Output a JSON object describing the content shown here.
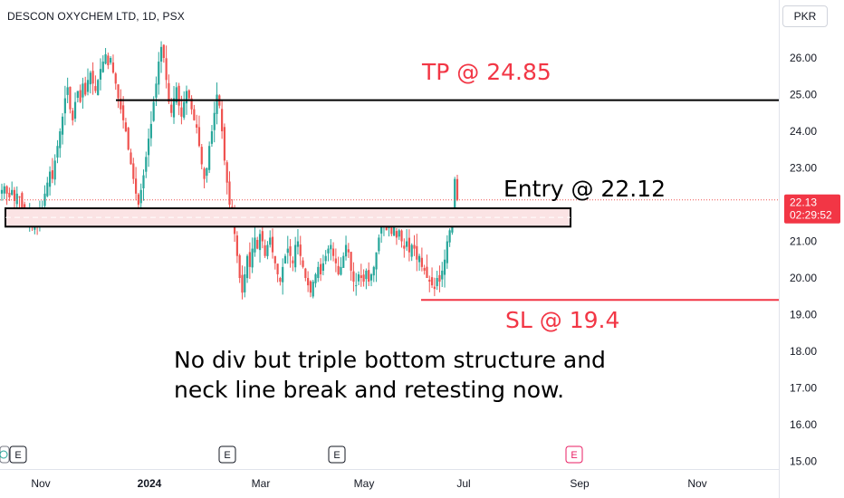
{
  "header": {
    "symbol_title": "DESCON OXYCHEM LTD, 1D, PSX",
    "currency": "PKR"
  },
  "annotations": {
    "tp_label": "TP @ 24.85",
    "entry_label": "Entry @ 22.12",
    "sl_label": "SL @ 19.4",
    "note_line1": "No div but triple bottom structure and",
    "note_line2": "neck line break and retesting now."
  },
  "price_badge": {
    "price": "22.13",
    "countdown": "02:29:52"
  },
  "event_markers": [
    "E",
    "E",
    "E",
    "E"
  ],
  "colors": {
    "up": "#26a69a",
    "down": "#ef5350",
    "annotation_red": "#f23645",
    "line_black": "#000000",
    "zone_fill": "#fbe3e4",
    "axis_text": "#131722"
  },
  "chart_data": {
    "type": "candlestick",
    "title": "DESCON OXYCHEM LTD, 1D, PSX",
    "currency": "PKR",
    "ylim": [
      14.8,
      26.7
    ],
    "y_ticks": [
      "15.00",
      "16.00",
      "17.00",
      "18.00",
      "19.00",
      "20.00",
      "21.00",
      "22.00",
      "23.00",
      "24.00",
      "25.00",
      "26.00"
    ],
    "x_ticks": [
      "Nov",
      "2024",
      "Mar",
      "May",
      "Jul",
      "Sep",
      "Nov"
    ],
    "levels": {
      "take_profit": 24.85,
      "entry": 22.12,
      "stop_loss": 19.4,
      "last_price": 22.13
    },
    "retest_zone": [
      21.4,
      21.9
    ],
    "grid": false,
    "close_series": [
      22.4,
      22.5,
      22.3,
      22.2,
      22.4,
      22.1,
      22.3,
      22.2,
      21.9,
      21.6,
      21.5,
      21.7,
      21.4,
      21.6,
      21.5,
      21.8,
      21.9,
      22.3,
      22.6,
      22.9,
      22.7,
      23.2,
      23.6,
      24.0,
      24.4,
      24.9,
      25.2,
      24.6,
      24.3,
      24.8,
      25.1,
      24.8,
      25.3,
      25.0,
      25.4,
      25.6,
      25.3,
      25.1,
      25.4,
      25.7,
      25.9,
      26.1,
      25.8,
      26.0,
      25.6,
      25.3,
      24.9,
      24.6,
      24.3,
      24.0,
      23.5,
      23.1,
      22.7,
      22.3,
      22.0,
      22.4,
      22.8,
      23.3,
      23.8,
      24.2,
      24.8,
      25.3,
      25.9,
      26.3,
      26.0,
      25.4,
      24.8,
      24.5,
      24.9,
      25.2,
      24.7,
      24.4,
      24.8,
      25.1,
      24.9,
      24.6,
      24.3,
      24.1,
      23.6,
      23.1,
      22.7,
      23.0,
      23.6,
      24.0,
      24.5,
      25.0,
      24.7,
      24.0,
      23.2,
      22.6,
      22.0,
      21.6,
      21.2,
      20.6,
      20.0,
      19.6,
      20.1,
      20.6,
      20.3,
      20.8,
      21.1,
      20.8,
      21.2,
      21.0,
      20.6,
      20.9,
      21.1,
      20.7,
      20.4,
      20.1,
      19.9,
      20.3,
      20.6,
      20.8,
      20.6,
      20.4,
      20.9,
      21.0,
      20.6,
      20.3,
      20.0,
      19.8,
      19.6,
      19.9,
      20.1,
      20.3,
      20.1,
      20.4,
      20.6,
      20.8,
      20.9,
      20.6,
      20.4,
      20.1,
      20.3,
      20.6,
      20.9,
      20.7,
      20.2,
      19.9,
      19.8,
      20.1,
      20.0,
      19.9,
      20.2,
      19.9,
      20.1,
      20.3,
      20.7,
      21.1,
      21.4,
      21.6,
      21.3,
      21.5,
      21.2,
      21.4,
      21.1,
      21.3,
      21.0,
      20.8,
      21.0,
      20.7,
      20.9,
      20.8,
      20.5,
      20.6,
      20.3,
      20.2,
      20.0,
      19.9,
      19.8,
      19.7,
      20.0,
      19.9,
      20.2,
      20.5,
      21.0,
      21.3,
      21.6,
      22.7,
      22.13
    ]
  }
}
